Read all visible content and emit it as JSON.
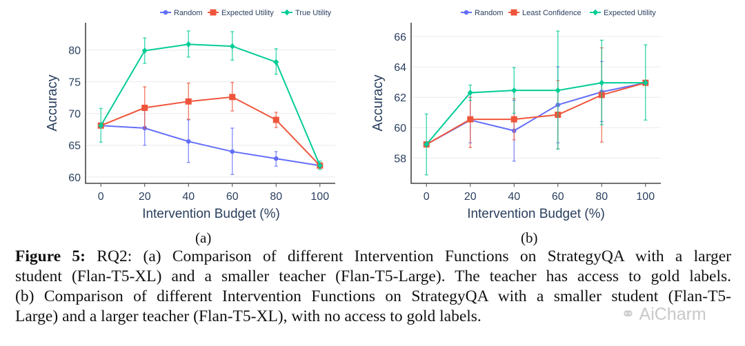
{
  "chart_data": [
    {
      "type": "line",
      "panel_label": "(a)",
      "xlabel": "Intervention Budget (%)",
      "ylabel": "Accuracy",
      "x": [
        0,
        20,
        40,
        60,
        80,
        100
      ],
      "xlim": [
        -7,
        107
      ],
      "ylim": [
        59,
        84.3
      ],
      "yticks": [
        60,
        65,
        70,
        75,
        80
      ],
      "grid": true,
      "legend": "top-right",
      "error_bars": true,
      "series": [
        {
          "name": "Random",
          "color": "#636efa",
          "marker": "circle",
          "values": [
            68.1,
            67.7,
            65.6,
            64.0,
            62.9,
            61.8
          ],
          "err_low": [
            68.1,
            65.0,
            62.3,
            60.4,
            61.7,
            61.8
          ],
          "err_high": [
            68.1,
            70.5,
            69.0,
            67.7,
            64.0,
            61.8
          ]
        },
        {
          "name": "Expected Utility",
          "color": "#ef553b",
          "marker": "square",
          "values": [
            68.1,
            70.9,
            71.9,
            72.6,
            69.0,
            61.8
          ],
          "err_low": [
            68.1,
            67.7,
            69.1,
            70.4,
            67.8,
            61.8
          ],
          "err_high": [
            68.1,
            74.2,
            74.8,
            74.9,
            70.2,
            61.8
          ]
        },
        {
          "name": "True Utility",
          "color": "#00cc96",
          "marker": "diamond",
          "values": [
            68.1,
            79.9,
            80.9,
            80.6,
            78.1,
            61.8
          ],
          "err_low": [
            65.5,
            77.9,
            78.9,
            78.4,
            76.2,
            61.2
          ],
          "err_high": [
            70.8,
            81.9,
            83.0,
            82.9,
            80.2,
            62.5
          ]
        }
      ]
    },
    {
      "type": "line",
      "panel_label": "(b)",
      "xlabel": "Intervention Budget (%)",
      "ylabel": "Accuracy",
      "x": [
        0,
        20,
        40,
        60,
        80,
        100
      ],
      "xlim": [
        -7,
        107
      ],
      "ylim": [
        56.34,
        66.9
      ],
      "yticks": [
        58,
        60,
        62,
        64,
        66
      ],
      "grid": true,
      "legend": "top-right",
      "error_bars": true,
      "series": [
        {
          "name": "Random",
          "color": "#636efa",
          "marker": "circle",
          "values": [
            58.9,
            60.5,
            59.8,
            61.5,
            62.35,
            62.95
          ],
          "err_low": [
            58.9,
            59.0,
            57.8,
            59.0,
            60.4,
            62.95
          ],
          "err_high": [
            58.9,
            62.0,
            61.8,
            64.0,
            64.35,
            62.95
          ]
        },
        {
          "name": "Least Confidence",
          "color": "#ef553b",
          "marker": "square",
          "values": [
            58.9,
            60.55,
            60.55,
            60.85,
            62.15,
            62.95
          ],
          "err_low": [
            58.9,
            58.7,
            59.2,
            58.6,
            59.05,
            62.95
          ],
          "err_high": [
            58.9,
            62.0,
            61.9,
            63.1,
            65.25,
            62.95
          ]
        },
        {
          "name": "Expected Utility",
          "color": "#00cc96",
          "marker": "diamond",
          "values": [
            58.9,
            62.3,
            62.45,
            62.45,
            62.95,
            62.95
          ],
          "err_low": [
            56.9,
            61.8,
            60.95,
            58.6,
            60.2,
            60.5
          ],
          "err_high": [
            60.9,
            62.8,
            63.95,
            66.35,
            65.75,
            65.45
          ]
        }
      ]
    }
  ],
  "caption": {
    "label": "Figure 5:",
    "lines": [
      " RQ2: (a) Comparison of different Intervention Functions on StrategyQA with a larger",
      "student (Flan-T5-XL) and a smaller teacher (Flan-T5-Large). The teacher has access to gold labels.",
      "(b) Comparison of different Intervention Functions on StrategyQA with a smaller student (Flan-T5-",
      "Large) and a larger teacher (Flan-T5-XL), with no access to gold labels."
    ]
  },
  "watermark": "AiCharm"
}
